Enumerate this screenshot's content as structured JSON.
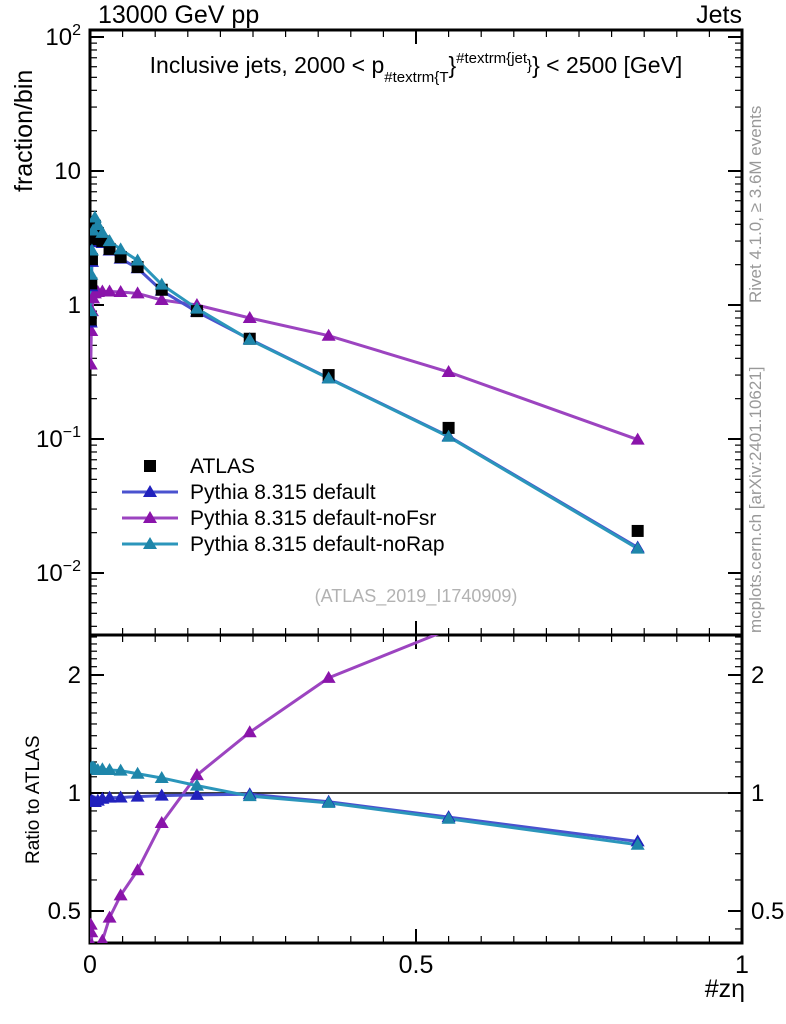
{
  "header": {
    "left": "13000 GeV pp",
    "right": "Jets"
  },
  "plot_title": {
    "prefix": "Inclusive jets, 2000 < p",
    "sub": "#textrm{T",
    "brace_mid": "}",
    "sup": "#textrm{jet",
    "sup_close": "}",
    "brace_end": "}",
    "suffix": " < 2500 [GeV]"
  },
  "watermark": "(ATLAS_2019_I1740909)",
  "side_notes": {
    "top": "Rivet 4.1.0, ≥ 3.6M events",
    "bottom": "mcplots.cern.ch [arXiv:2401.10621]"
  },
  "colors": {
    "atlas": "#000000",
    "default_marker": "#2121bd",
    "default_line": "#4a52cf",
    "nofsr_marker": "#8a14aa",
    "nofsr_line": "#9c44c0",
    "norap_marker": "#1e86aa",
    "norap_line": "#2b96bb",
    "watermark": "#b2b2b2",
    "side_note": "#999999"
  },
  "chart_data": {
    "type": "line",
    "title": "Inclusive jets, 2000 < p_{#textrm{T}}^{#textrm{jet}} < 2500 [GeV]",
    "xlabel": "#zη",
    "x": [
      0.0012,
      0.002,
      0.003,
      0.0048,
      0.0075,
      0.012,
      0.019,
      0.03,
      0.047,
      0.073,
      0.11,
      0.164,
      0.245,
      0.366,
      0.55,
      0.84
    ],
    "series": [
      {
        "name": "ATLAS",
        "marker": "square",
        "marker_color": "#000000",
        "line_color": null,
        "values": [
          0.78,
          1.45,
          2.2,
          3.1,
          3.9,
          3.45,
          3.0,
          2.62,
          2.28,
          1.92,
          1.3,
          0.9,
          0.56,
          0.3,
          0.121,
          0.0206
        ]
      },
      {
        "name": "Pythia 8.315 default",
        "marker": "triangle",
        "marker_color": "#2121bd",
        "line_color": "#4a52cf",
        "values": [
          0.74,
          1.38,
          2.1,
          2.95,
          3.7,
          3.3,
          2.9,
          2.55,
          2.22,
          1.88,
          1.28,
          0.89,
          0.556,
          0.285,
          0.105,
          0.0155
        ]
      },
      {
        "name": "Pythia 8.315 default-noFsr",
        "marker": "triangle",
        "marker_color": "#8a14aa",
        "line_color": "#9c44c0",
        "values": [
          0.36,
          0.64,
          0.9,
          1.12,
          1.22,
          1.25,
          1.26,
          1.26,
          1.25,
          1.22,
          1.09,
          1.0,
          0.8,
          0.59,
          0.316,
          0.099
        ]
      },
      {
        "name": "Pythia 8.315 default-noRap",
        "marker": "triangle",
        "marker_color": "#1e86aa",
        "line_color": "#2b96bb",
        "values": [
          0.9,
          1.68,
          2.55,
          3.6,
          4.5,
          3.95,
          3.45,
          3.0,
          2.6,
          2.15,
          1.42,
          0.94,
          0.55,
          0.283,
          0.104,
          0.0152
        ]
      }
    ],
    "top_panel": {
      "ylabel": "fraction/bin",
      "yscale": "log",
      "ylim": [
        0.0035,
        112
      ],
      "yticks": [
        {
          "v": 100,
          "base": "10",
          "exp": "2"
        },
        {
          "v": 10,
          "base": "10",
          "exp": ""
        },
        {
          "v": 1,
          "base": "1",
          "exp": ""
        },
        {
          "v": 0.1,
          "base": "10",
          "exp": "−1"
        },
        {
          "v": 0.01,
          "base": "10",
          "exp": "−2"
        }
      ]
    },
    "ratio_panel": {
      "ylabel": "Ratio to ATLAS",
      "yscale": "log",
      "ylim": [
        0.414,
        2.53
      ],
      "ref_line": 1,
      "yticks": [
        {
          "v": 2,
          "label": "2"
        },
        {
          "v": 1,
          "label": "1"
        },
        {
          "v": 0.5,
          "label": "0.5"
        }
      ],
      "yminor": [
        0.45,
        0.6,
        0.7,
        0.8,
        0.9,
        1.1,
        1.2,
        1.3,
        1.4,
        1.5,
        1.6,
        1.7,
        1.8,
        1.9,
        2.1,
        2.2,
        2.3,
        2.4,
        2.5
      ]
    },
    "xaxis": {
      "lim": [
        0,
        1
      ],
      "ticks": [
        {
          "v": 0,
          "label": "0"
        },
        {
          "v": 0.5,
          "label": "0.5"
        },
        {
          "v": 1,
          "label": "1"
        }
      ],
      "minor_step": 0.05
    },
    "legend": [
      "ATLAS",
      "Pythia 8.315 default",
      "Pythia 8.315 default-noFsr",
      "Pythia 8.315 default-noRap"
    ]
  }
}
